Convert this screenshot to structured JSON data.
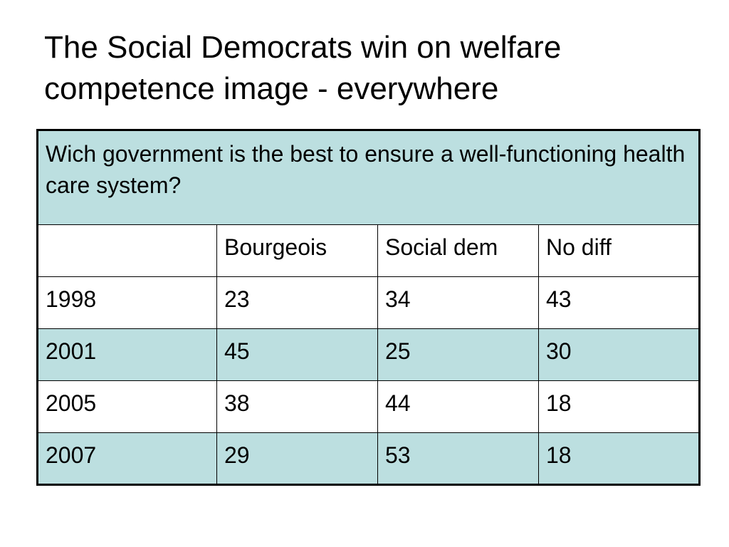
{
  "slide": {
    "title_line1": "The Social Democrats win on welfare",
    "title_line2": "competence image - everywhere"
  },
  "table": {
    "question": "Wich government is the best to ensure a well-functioning health care system?",
    "columns": [
      "",
      "Bourgeois",
      "Social dem",
      "No diff"
    ],
    "rows": [
      {
        "year": "1998",
        "bourgeois": "23",
        "social_dem": "34",
        "no_diff": "43"
      },
      {
        "year": "2001",
        "bourgeois": "45",
        "social_dem": "25",
        "no_diff": "30"
      },
      {
        "year": "2005",
        "bourgeois": "38",
        "social_dem": "44",
        "no_diff": "18"
      },
      {
        "year": "2007",
        "bourgeois": "29",
        "social_dem": "53",
        "no_diff": "18"
      }
    ]
  },
  "colors": {
    "shade": "#bcdfe0",
    "plain": "#ffffff",
    "border": "#000000"
  }
}
